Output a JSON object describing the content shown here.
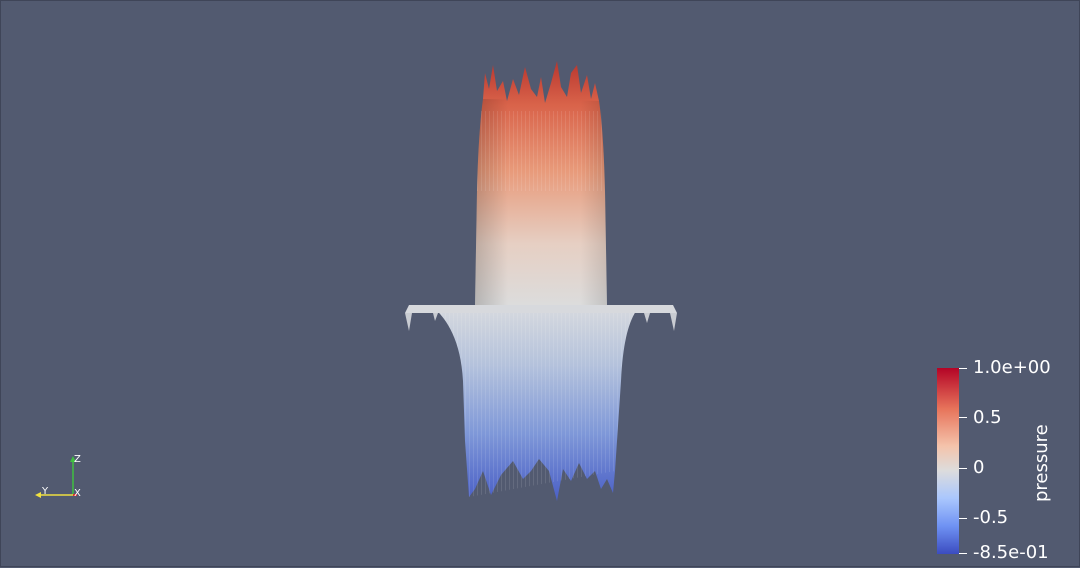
{
  "viewport": {
    "background": "#525a70"
  },
  "colorbar": {
    "title": "pressure",
    "colormap": "Cool to Warm",
    "ticks": [
      "1.0e+00",
      "0.5",
      "0",
      "-0.5",
      "-8.5e-01"
    ],
    "min_color": "#3b4cc0",
    "mid_color": "#dddcdc",
    "max_color": "#b40426"
  },
  "axes": {
    "x_label": "X",
    "y_label": "Y",
    "z_label": "Z",
    "x_color": "#e03030",
    "y_color": "#f0e040",
    "z_color": "#40c040"
  }
}
